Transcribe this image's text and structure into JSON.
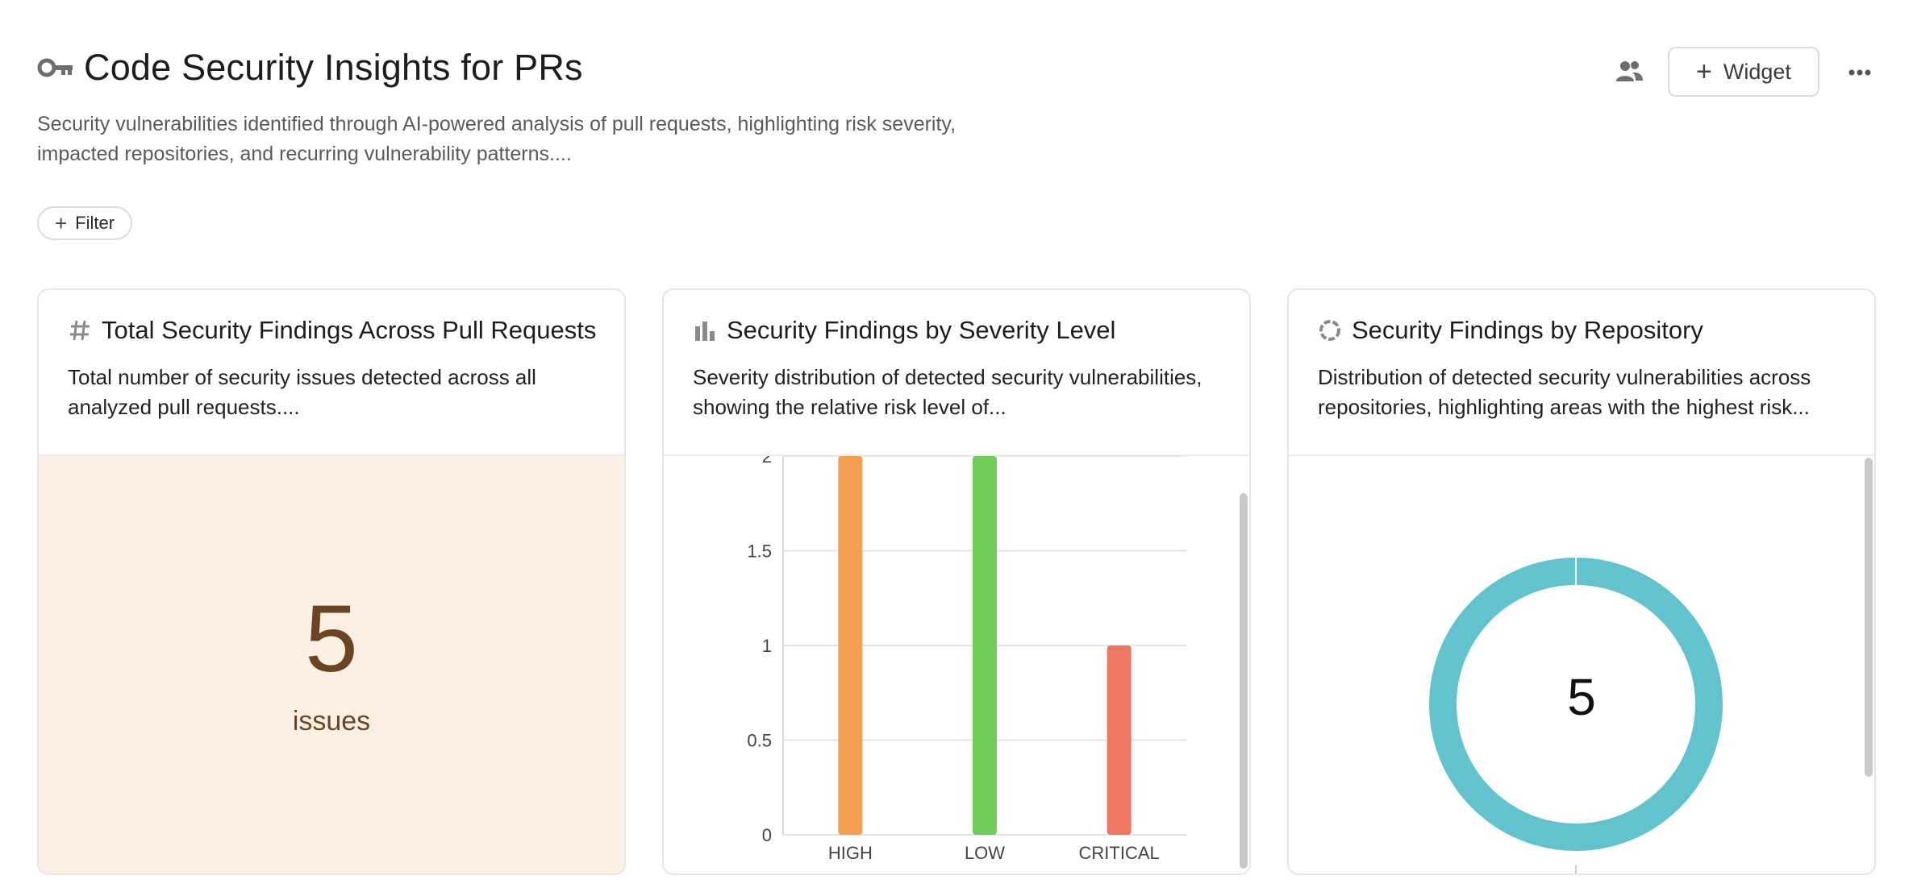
{
  "header": {
    "title": "Code Security Insights for PRs",
    "description": "Security vulnerabilities identified through AI-powered analysis of pull requests, highlighting risk severity, impacted repositories, and recurring vulnerability patterns....",
    "icon": "key-icon",
    "actions": {
      "share_icon": "users-icon",
      "widget_label": "Widget",
      "more_icon": "more-horizontal-icon"
    }
  },
  "filter": {
    "label": "Filter"
  },
  "cards": [
    {
      "icon": "hash-icon",
      "title": "Total Security Findings Across Pull Requests",
      "description": "Total number of security issues detected across all analyzed pull requests....",
      "value": "5",
      "unit": "issues",
      "background": "#fcf0e4",
      "text_color": "#6b4422"
    },
    {
      "icon": "bar-chart-icon",
      "title": "Security Findings by Severity Level",
      "description": "Severity distribution of detected security vulnerabilities, showing the relative risk level of..."
    },
    {
      "icon": "donut-chart-icon",
      "title": "Security Findings by Repository",
      "description": "Distribution of detected security vulnerabilities across repositories, highlighting areas with the highest risk...",
      "center_value": "5"
    }
  ],
  "chart_data": [
    {
      "type": "bar",
      "categories": [
        "HIGH",
        "LOW",
        "CRITICAL"
      ],
      "values": [
        2,
        2,
        1
      ],
      "colors": [
        "#f2a050",
        "#72cd58",
        "#ee7862"
      ],
      "yticks": [
        "0",
        "0.5",
        "1",
        "1.5",
        "2"
      ],
      "ylim": [
        0,
        2
      ],
      "grid": true
    },
    {
      "type": "pie",
      "labels": [
        ""
      ],
      "values": [
        5
      ],
      "colors": [
        "#62c3cf"
      ],
      "center_label": "5"
    }
  ],
  "colors": {
    "metric_background": "#fcf0e4",
    "metric_text": "#6b4422",
    "donut": "#62c3cf",
    "border": "#e6e6e6"
  }
}
